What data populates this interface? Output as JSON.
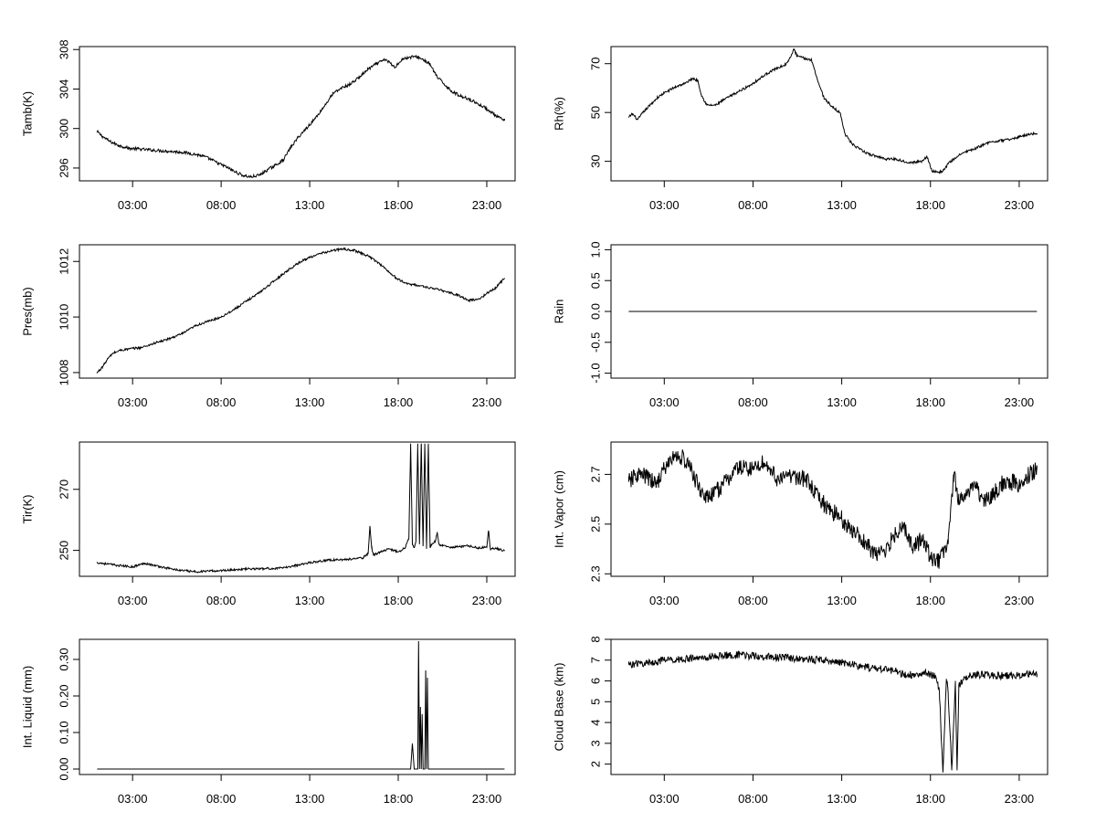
{
  "chart_data": [
    {
      "type": "line",
      "ylabel": "Tamb(K)",
      "xlim": [
        0,
        24.6
      ],
      "xticks": [
        {
          "v": 3,
          "label": "03:00"
        },
        {
          "v": 8,
          "label": "08:00"
        },
        {
          "v": 13,
          "label": "13:00"
        },
        {
          "v": 18,
          "label": "18:00"
        },
        {
          "v": 23,
          "label": "23:00"
        }
      ],
      "ylim": [
        294.7,
        308.3
      ],
      "yticks": [
        296,
        300,
        304,
        308
      ],
      "noise": 0.15,
      "series": [
        {
          "x": [
            1.0,
            1.3,
            1.7,
            2.2,
            2.8,
            3.5,
            4.2,
            5.0,
            5.8,
            6.5,
            7.0,
            7.5,
            7.8,
            8.3,
            8.8,
            9.3,
            9.7,
            10.2,
            10.6,
            11.0,
            11.5,
            11.9,
            12.3,
            12.8,
            13.3,
            13.8,
            14.3,
            14.8,
            15.3,
            15.8,
            16.3,
            16.8,
            17.3,
            17.8,
            18.2,
            18.6,
            19.0,
            19.4,
            19.8,
            20.2,
            20.6,
            21.0,
            21.5,
            22.0,
            22.5,
            23.0,
            23.5,
            24.0
          ],
          "y": [
            299.7,
            299.2,
            298.7,
            298.3,
            298.0,
            297.9,
            297.8,
            297.7,
            297.6,
            297.4,
            297.2,
            296.8,
            296.5,
            296.1,
            295.6,
            295.2,
            295.1,
            295.3,
            295.8,
            296.2,
            296.8,
            298.0,
            299.0,
            300.0,
            301.0,
            302.2,
            303.5,
            304.1,
            304.5,
            305.2,
            306.0,
            306.6,
            307.0,
            306.2,
            307.0,
            307.2,
            307.3,
            307.0,
            306.5,
            305.2,
            304.5,
            303.8,
            303.3,
            303.0,
            302.5,
            302.0,
            301.3,
            300.8
          ]
        }
      ]
    },
    {
      "type": "line",
      "ylabel": "Rh(%)",
      "xlim": [
        0,
        24.6
      ],
      "xticks": [
        {
          "v": 3,
          "label": "03:00"
        },
        {
          "v": 8,
          "label": "08:00"
        },
        {
          "v": 13,
          "label": "13:00"
        },
        {
          "v": 18,
          "label": "18:00"
        },
        {
          "v": 23,
          "label": "23:00"
        }
      ],
      "ylim": [
        22,
        77
      ],
      "yticks": [
        30,
        50,
        70
      ],
      "noise": 0.5,
      "series": [
        {
          "x": [
            1.0,
            1.2,
            1.5,
            1.8,
            2.2,
            2.6,
            3.0,
            3.5,
            3.8,
            4.2,
            4.6,
            4.9,
            5.1,
            5.4,
            5.9,
            6.3,
            6.8,
            7.3,
            7.8,
            8.3,
            8.8,
            9.3,
            9.8,
            10.0,
            10.2,
            10.3,
            10.5,
            11.0,
            11.3,
            11.7,
            12.0,
            12.5,
            12.9,
            13.2,
            13.6,
            14.0,
            14.5,
            15.0,
            15.5,
            16.0,
            16.5,
            17.0,
            17.5,
            17.8,
            18.1,
            18.4,
            18.7,
            19.0,
            19.5,
            20.0,
            20.5,
            21.0,
            21.5,
            22.0,
            22.5,
            23.0,
            23.5,
            24.0
          ],
          "y": [
            48,
            49.5,
            47,
            50,
            53,
            56,
            58,
            60,
            61,
            62,
            64,
            63,
            57,
            53,
            53,
            55,
            57,
            59,
            61,
            63.5,
            66,
            68,
            69.5,
            71,
            74,
            76,
            73,
            72,
            71.5,
            62,
            56,
            52,
            50,
            41,
            37,
            35,
            33,
            32,
            31,
            31,
            30,
            29.5,
            30,
            32,
            26,
            25.5,
            26,
            29,
            32,
            34,
            35,
            37,
            38,
            38.5,
            39,
            40,
            41,
            41.5
          ]
        }
      ]
    },
    {
      "type": "line",
      "ylabel": "Pres(mb)",
      "xlim": [
        0,
        24.6
      ],
      "xticks": [
        {
          "v": 3,
          "label": "03:00"
        },
        {
          "v": 8,
          "label": "08:00"
        },
        {
          "v": 13,
          "label": "13:00"
        },
        {
          "v": 18,
          "label": "18:00"
        },
        {
          "v": 23,
          "label": "23:00"
        }
      ],
      "ylim": [
        1007.8,
        1012.6
      ],
      "yticks": [
        1008,
        1010,
        1012
      ],
      "noise": 0.04,
      "series": [
        {
          "x": [
            1.0,
            1.3,
            1.6,
            1.9,
            2.3,
            2.8,
            3.5,
            4.2,
            5.0,
            5.8,
            6.6,
            7.3,
            8.0,
            8.8,
            9.5,
            10.2,
            11.0,
            11.8,
            12.5,
            13.2,
            14.0,
            14.8,
            15.5,
            16.3,
            17.0,
            17.5,
            18.0,
            18.5,
            19.0,
            19.8,
            20.5,
            21.3,
            22.0,
            22.6,
            23.0,
            23.5,
            24.0
          ],
          "y": [
            1008.0,
            1008.2,
            1008.5,
            1008.7,
            1008.8,
            1008.85,
            1008.9,
            1009.05,
            1009.2,
            1009.4,
            1009.7,
            1009.85,
            1010.0,
            1010.3,
            1010.6,
            1010.9,
            1011.3,
            1011.7,
            1012.0,
            1012.2,
            1012.35,
            1012.45,
            1012.4,
            1012.2,
            1011.9,
            1011.6,
            1011.35,
            1011.2,
            1011.15,
            1011.05,
            1010.95,
            1010.8,
            1010.6,
            1010.65,
            1010.85,
            1011.05,
            1011.4
          ]
        }
      ]
    },
    {
      "type": "line",
      "ylabel": "Rain",
      "xlim": [
        0,
        24.6
      ],
      "xticks": [
        {
          "v": 3,
          "label": "03:00"
        },
        {
          "v": 8,
          "label": "08:00"
        },
        {
          "v": 13,
          "label": "13:00"
        },
        {
          "v": 18,
          "label": "18:00"
        },
        {
          "v": 23,
          "label": "23:00"
        }
      ],
      "ylim": [
        -1.08,
        1.08
      ],
      "yticks": [
        -1.0,
        -0.5,
        0.0,
        0.5,
        1.0
      ],
      "ytick_labels": [
        "-1.0",
        "-0.5",
        "0.0",
        "0.5",
        "1.0"
      ],
      "noise": 0,
      "series": [
        {
          "x": [
            1.0,
            24.0
          ],
          "y": [
            0,
            0
          ]
        }
      ]
    },
    {
      "type": "line",
      "ylabel": "Tir(K)",
      "xlim": [
        0,
        24.6
      ],
      "xticks": [
        {
          "v": 3,
          "label": "03:00"
        },
        {
          "v": 8,
          "label": "08:00"
        },
        {
          "v": 13,
          "label": "13:00"
        },
        {
          "v": 18,
          "label": "18:00"
        },
        {
          "v": 23,
          "label": "23:00"
        }
      ],
      "ylim": [
        241.5,
        285.5
      ],
      "yticks": [
        250,
        270
      ],
      "noise": 0.35,
      "series": [
        {
          "x": [
            1.0,
            2.0,
            3.0,
            3.7,
            4.5,
            5.5,
            6.5,
            7.5,
            8.5,
            9.5,
            10.5,
            11.5,
            12.3,
            13.0,
            14.0,
            15.0,
            16.0,
            16.3,
            16.4,
            16.5,
            16.6,
            17.0,
            17.5,
            18.0,
            18.4,
            18.6,
            18.7,
            18.8,
            18.9,
            19.0,
            19.1,
            19.2,
            19.3,
            19.4,
            19.5,
            19.6,
            19.7,
            19.8,
            19.9,
            20.0,
            20.1,
            20.2,
            20.3,
            20.5,
            21.0,
            21.5,
            22.0,
            22.5,
            23.0,
            23.1,
            23.2,
            23.5,
            24.0
          ],
          "y": [
            246,
            245.2,
            244.6,
            245.8,
            244.7,
            243.6,
            243.0,
            243.2,
            243.6,
            243.9,
            244.0,
            244.2,
            245.2,
            246.0,
            246.8,
            247.0,
            247.5,
            249.0,
            258.0,
            251.0,
            248.5,
            249.5,
            250.5,
            249.5,
            251.0,
            254.0,
            285.0,
            252.0,
            251.0,
            253.0,
            285.0,
            252.0,
            285.0,
            251.5,
            285.0,
            250.5,
            285.0,
            251.0,
            252.0,
            252.5,
            253.0,
            256.0,
            252.0,
            251.5,
            251.0,
            251.2,
            251.5,
            250.8,
            251.0,
            256.5,
            250.5,
            250.8,
            249.8
          ]
        }
      ]
    },
    {
      "type": "line",
      "ylabel": "Int. Vapor (cm)",
      "xlim": [
        0,
        24.6
      ],
      "xticks": [
        {
          "v": 3,
          "label": "03:00"
        },
        {
          "v": 8,
          "label": "08:00"
        },
        {
          "v": 13,
          "label": "13:00"
        },
        {
          "v": 18,
          "label": "18:00"
        },
        {
          "v": 23,
          "label": "23:00"
        }
      ],
      "ylim": [
        2.29,
        2.83
      ],
      "yticks": [
        2.3,
        2.5,
        2.7
      ],
      "ytick_labels": [
        "2.3",
        "2.5",
        "2.7"
      ],
      "noise": 0.035,
      "series": [
        {
          "x": [
            1.0,
            1.5,
            2.0,
            2.5,
            3.0,
            3.5,
            4.0,
            4.5,
            5.0,
            5.5,
            6.0,
            6.5,
            7.0,
            7.5,
            8.0,
            8.5,
            9.0,
            9.5,
            10.0,
            10.5,
            11.0,
            11.5,
            12.0,
            12.5,
            13.0,
            13.5,
            14.0,
            14.5,
            15.0,
            15.5,
            16.0,
            16.5,
            17.0,
            17.5,
            18.0,
            18.5,
            19.0,
            19.3,
            19.6,
            20.0,
            20.5,
            21.0,
            21.5,
            22.0,
            22.5,
            23.0,
            23.5,
            24.0
          ],
          "y": [
            2.67,
            2.7,
            2.69,
            2.66,
            2.72,
            2.77,
            2.77,
            2.72,
            2.64,
            2.6,
            2.64,
            2.67,
            2.72,
            2.73,
            2.72,
            2.75,
            2.72,
            2.67,
            2.7,
            2.69,
            2.68,
            2.62,
            2.58,
            2.55,
            2.52,
            2.48,
            2.45,
            2.41,
            2.37,
            2.4,
            2.46,
            2.5,
            2.4,
            2.44,
            2.37,
            2.35,
            2.42,
            2.7,
            2.6,
            2.62,
            2.65,
            2.6,
            2.62,
            2.66,
            2.67,
            2.66,
            2.7,
            2.72
          ]
        }
      ]
    },
    {
      "type": "line",
      "ylabel": "Int. Liquid (mm)",
      "xlim": [
        0,
        24.6
      ],
      "xticks": [
        {
          "v": 3,
          "label": "03:00"
        },
        {
          "v": 8,
          "label": "08:00"
        },
        {
          "v": 13,
          "label": "13:00"
        },
        {
          "v": 18,
          "label": "18:00"
        },
        {
          "v": 23,
          "label": "23:00"
        }
      ],
      "ylim": [
        -0.015,
        0.355
      ],
      "yticks": [
        0.0,
        0.1,
        0.2,
        0.3
      ],
      "ytick_labels": [
        "0.00",
        "0.10",
        "0.20",
        "0.30"
      ],
      "noise": 0,
      "series": [
        {
          "x": [
            1.0,
            18.7,
            18.8,
            18.9,
            19.0,
            19.1,
            19.15,
            19.2,
            19.25,
            19.3,
            19.35,
            19.4,
            19.5,
            19.55,
            19.6,
            19.65,
            19.7,
            19.8,
            24.0
          ],
          "y": [
            0.0,
            0.0,
            0.07,
            0.0,
            0.0,
            0.0,
            0.35,
            0.0,
            0.17,
            0.0,
            0.15,
            0.0,
            0.0,
            0.27,
            0.0,
            0.25,
            0.0,
            0.0,
            0.0
          ]
        }
      ]
    },
    {
      "type": "line",
      "ylabel": "Cloud Base (km)",
      "xlim": [
        0,
        24.6
      ],
      "xticks": [
        {
          "v": 3,
          "label": "03:00"
        },
        {
          "v": 8,
          "label": "08:00"
        },
        {
          "v": 13,
          "label": "13:00"
        },
        {
          "v": 18,
          "label": "18:00"
        },
        {
          "v": 23,
          "label": "23:00"
        }
      ],
      "ylim": [
        1.5,
        8.0
      ],
      "yticks": [
        2,
        3,
        4,
        5,
        6,
        7,
        8
      ],
      "noise": 0.18,
      "series": [
        {
          "x": [
            1.0,
            2.0,
            3.0,
            4.0,
            5.0,
            6.0,
            7.0,
            8.0,
            9.0,
            10.0,
            11.0,
            12.0,
            13.0,
            14.0,
            15.0,
            16.0,
            16.5,
            17.0,
            17.5,
            17.8,
            18.0,
            18.3,
            18.5,
            18.7,
            18.9,
            19.0,
            19.2,
            19.4,
            19.5,
            19.6,
            19.8,
            20.0,
            20.5,
            21.0,
            22.0,
            23.0,
            24.0
          ],
          "y": [
            6.8,
            6.85,
            7.0,
            7.05,
            7.1,
            7.2,
            7.25,
            7.2,
            7.15,
            7.1,
            7.05,
            7.0,
            6.9,
            6.7,
            6.6,
            6.5,
            6.3,
            6.3,
            6.4,
            6.35,
            6.3,
            6.2,
            5.5,
            1.6,
            6.1,
            5.4,
            1.7,
            6.0,
            1.7,
            5.8,
            6.0,
            6.2,
            6.3,
            6.3,
            6.25,
            6.3,
            6.35
          ]
        }
      ]
    }
  ]
}
